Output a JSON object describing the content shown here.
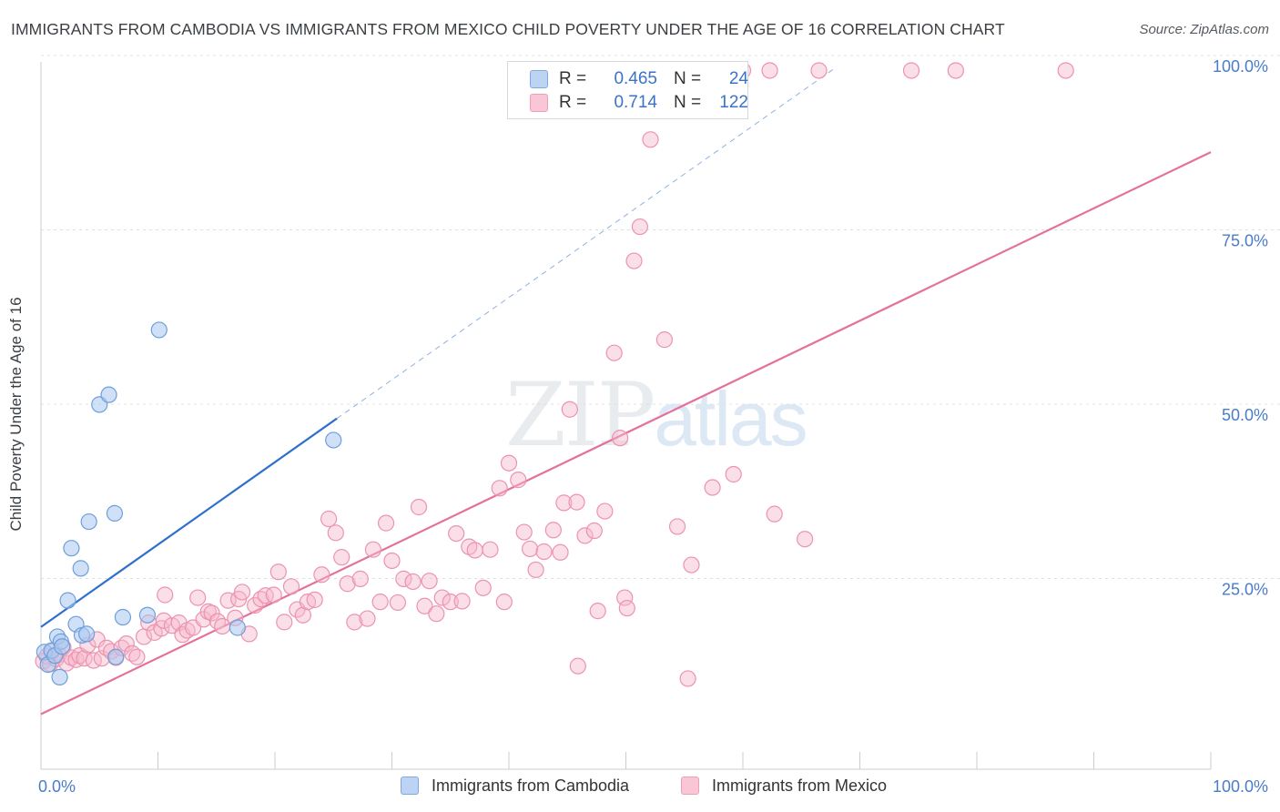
{
  "title": "IMMIGRANTS FROM CAMBODIA VS IMMIGRANTS FROM MEXICO CHILD POVERTY UNDER THE AGE OF 16 CORRELATION CHART",
  "source": "Source: ZipAtlas.com",
  "watermark": {
    "zip": "ZIP",
    "atlas": "atlas"
  },
  "legend": {
    "rows": [
      {
        "series": "Immigrants from Cambodia",
        "r_label": "R =",
        "r_value": "0.465",
        "n_label": "N =",
        "n_value": "24"
      },
      {
        "series": "Immigrants from Mexico",
        "r_label": "R =",
        "r_value": "0.714",
        "n_label": "N =",
        "n_value": "122"
      }
    ]
  },
  "colors": {
    "cambodia_fill": "#a9c8f0",
    "cambodia_stroke": "#6d9fdb",
    "cambodia_line": "#2f6fcd",
    "mexico_fill": "#f7b9cb",
    "mexico_stroke": "#ec93ae",
    "mexico_line": "#e4719a",
    "axis_tick_text": "#4a7cc8",
    "grid": "#dde0e3"
  },
  "chart_data": {
    "type": "scatter",
    "title": "IMMIGRANTS FROM CAMBODIA VS IMMIGRANTS FROM MEXICO CHILD POVERTY UNDER THE AGE OF 16 CORRELATION CHART",
    "xlabel": "",
    "ylabel": "Child Poverty Under the Age of 16",
    "xlim": [
      0,
      100
    ],
    "ylim": [
      0,
      100
    ],
    "x_tick_labels": [
      "0.0%",
      "100.0%"
    ],
    "y_ticks": [
      25,
      50,
      75,
      100
    ],
    "y_tick_labels": [
      "25.0%",
      "50.0%",
      "75.0%",
      "100.0%"
    ],
    "grid": true,
    "legend_position": "top-center",
    "series": [
      {
        "name": "Immigrants from Cambodia",
        "r": 0.465,
        "n": 24,
        "trend": {
          "x": [
            0,
            25.3
          ],
          "y": [
            20.4,
            50.3
          ]
        },
        "trend_extension": {
          "x": [
            25.3,
            68
          ],
          "y": [
            50.3,
            100.7
          ]
        },
        "points": [
          [
            0.3,
            16.8
          ],
          [
            0.6,
            15.0
          ],
          [
            0.9,
            17.0
          ],
          [
            1.2,
            16.3
          ],
          [
            1.4,
            19.0
          ],
          [
            1.7,
            18.3
          ],
          [
            1.6,
            13.2
          ],
          [
            1.8,
            17.6
          ],
          [
            2.3,
            24.2
          ],
          [
            2.6,
            31.7
          ],
          [
            3.0,
            20.8
          ],
          [
            3.4,
            28.8
          ],
          [
            3.5,
            19.2
          ],
          [
            3.9,
            19.4
          ],
          [
            4.1,
            35.5
          ],
          [
            5.0,
            52.3
          ],
          [
            5.8,
            53.7
          ],
          [
            6.3,
            36.7
          ],
          [
            6.4,
            16.1
          ],
          [
            7.0,
            21.8
          ],
          [
            9.1,
            22.1
          ],
          [
            10.1,
            63.0
          ],
          [
            16.8,
            20.3
          ],
          [
            25.0,
            47.2
          ]
        ]
      },
      {
        "name": "Immigrants from Mexico",
        "r": 0.714,
        "n": 122,
        "trend": {
          "x": [
            0,
            100
          ],
          "y": [
            7.9,
            88.5
          ]
        },
        "points": [
          [
            0.2,
            15.5
          ],
          [
            0.5,
            16.2
          ],
          [
            0.8,
            15.1
          ],
          [
            1.0,
            16.9
          ],
          [
            1.3,
            15.8
          ],
          [
            1.5,
            16.4
          ],
          [
            1.9,
            17.5
          ],
          [
            2.2,
            15.2
          ],
          [
            2.6,
            16.0
          ],
          [
            3.0,
            15.7
          ],
          [
            3.3,
            16.3
          ],
          [
            3.7,
            15.9
          ],
          [
            4.0,
            17.8
          ],
          [
            4.5,
            15.6
          ],
          [
            4.8,
            18.6
          ],
          [
            5.2,
            15.9
          ],
          [
            5.6,
            17.4
          ],
          [
            6.0,
            16.9
          ],
          [
            6.4,
            16.0
          ],
          [
            6.9,
            17.4
          ],
          [
            7.3,
            18.0
          ],
          [
            7.8,
            16.6
          ],
          [
            8.2,
            16.1
          ],
          [
            8.8,
            19.0
          ],
          [
            9.2,
            21.0
          ],
          [
            9.7,
            19.6
          ],
          [
            10.3,
            20.2
          ],
          [
            10.5,
            21.3
          ],
          [
            10.6,
            25.0
          ],
          [
            11.2,
            20.6
          ],
          [
            11.8,
            21.0
          ],
          [
            12.1,
            19.3
          ],
          [
            12.5,
            19.9
          ],
          [
            13.0,
            20.3
          ],
          [
            13.4,
            24.6
          ],
          [
            13.9,
            21.5
          ],
          [
            14.3,
            22.6
          ],
          [
            14.6,
            22.4
          ],
          [
            15.1,
            21.2
          ],
          [
            15.5,
            20.5
          ],
          [
            16.0,
            24.2
          ],
          [
            16.6,
            21.7
          ],
          [
            16.9,
            24.4
          ],
          [
            17.2,
            25.4
          ],
          [
            17.8,
            19.4
          ],
          [
            18.3,
            23.5
          ],
          [
            18.8,
            24.4
          ],
          [
            19.2,
            24.9
          ],
          [
            19.9,
            25.0
          ],
          [
            20.3,
            28.3
          ],
          [
            20.8,
            21.1
          ],
          [
            21.4,
            26.2
          ],
          [
            21.9,
            22.9
          ],
          [
            22.4,
            22.1
          ],
          [
            22.8,
            24.0
          ],
          [
            23.4,
            24.3
          ],
          [
            24.0,
            27.9
          ],
          [
            24.6,
            35.9
          ],
          [
            25.2,
            33.9
          ],
          [
            25.7,
            30.4
          ],
          [
            26.2,
            26.6
          ],
          [
            26.8,
            21.1
          ],
          [
            27.3,
            27.3
          ],
          [
            27.9,
            21.6
          ],
          [
            28.4,
            31.5
          ],
          [
            29.0,
            24.0
          ],
          [
            29.5,
            35.3
          ],
          [
            30.0,
            29.9
          ],
          [
            30.5,
            23.9
          ],
          [
            31.0,
            27.3
          ],
          [
            31.8,
            26.9
          ],
          [
            32.3,
            37.6
          ],
          [
            32.8,
            23.4
          ],
          [
            33.2,
            27.0
          ],
          [
            33.8,
            22.3
          ],
          [
            34.3,
            24.6
          ],
          [
            35.0,
            24.0
          ],
          [
            35.5,
            33.8
          ],
          [
            36.0,
            24.1
          ],
          [
            36.6,
            31.9
          ],
          [
            37.1,
            31.4
          ],
          [
            37.8,
            26.0
          ],
          [
            38.4,
            31.5
          ],
          [
            39.2,
            40.3
          ],
          [
            39.6,
            24.0
          ],
          [
            40.0,
            43.9
          ],
          [
            40.8,
            41.5
          ],
          [
            41.3,
            34.0
          ],
          [
            41.8,
            31.6
          ],
          [
            42.3,
            28.6
          ],
          [
            43.0,
            31.2
          ],
          [
            43.8,
            34.3
          ],
          [
            44.4,
            31.1
          ],
          [
            44.7,
            38.2
          ],
          [
            45.2,
            51.6
          ],
          [
            45.8,
            38.3
          ],
          [
            45.9,
            14.8
          ],
          [
            46.5,
            33.5
          ],
          [
            47.3,
            34.2
          ],
          [
            48.2,
            37.0
          ],
          [
            49.0,
            59.7
          ],
          [
            49.5,
            47.5
          ],
          [
            49.9,
            24.6
          ],
          [
            51.2,
            77.8
          ],
          [
            52.1,
            90.3
          ],
          [
            53.3,
            61.6
          ],
          [
            54.4,
            34.8
          ],
          [
            55.6,
            29.3
          ],
          [
            57.4,
            40.4
          ],
          [
            59.2,
            42.3
          ],
          [
            62.7,
            36.6
          ],
          [
            65.3,
            33.0
          ],
          [
            60.0,
            100.2
          ],
          [
            62.3,
            100.2
          ],
          [
            66.5,
            100.2
          ],
          [
            74.4,
            100.2
          ],
          [
            78.2,
            100.2
          ],
          [
            87.6,
            100.2
          ],
          [
            47.6,
            22.7
          ],
          [
            50.1,
            23.1
          ],
          [
            55.3,
            13.0
          ],
          [
            50.7,
            72.9
          ]
        ]
      }
    ]
  }
}
